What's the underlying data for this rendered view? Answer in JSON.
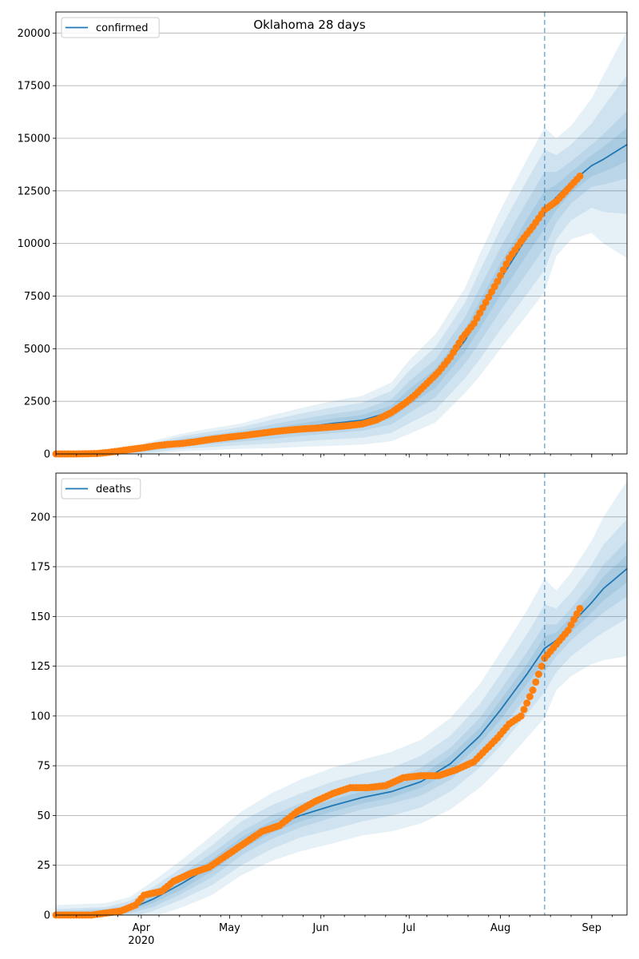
{
  "chart_data": [
    {
      "type": "line",
      "title": "Oklahoma 28 days",
      "legend": {
        "label": "confirmed",
        "placement": "top-left"
      },
      "x_unit": "date",
      "x_start": "2020-03-03",
      "x_end": "2020-09-13",
      "forecast_start": "2020-08-16",
      "ylim": [
        0,
        21000
      ],
      "yticks": [
        0,
        2500,
        5000,
        7500,
        10000,
        12500,
        15000,
        17500,
        20000
      ],
      "grid": "y",
      "colors": {
        "line": "#1f77b4",
        "points": "#ff7f0e",
        "band": "#1f77b4"
      },
      "model_anchors": {
        "x": [
          "2020-03-03",
          "2020-03-15",
          "2020-03-25",
          "2020-04-05",
          "2020-04-15",
          "2020-04-25",
          "2020-05-05",
          "2020-05-15",
          "2020-05-25",
          "2020-06-05",
          "2020-06-15",
          "2020-06-25",
          "2020-07-01",
          "2020-07-10",
          "2020-07-20",
          "2020-07-25",
          "2020-08-01",
          "2020-08-10",
          "2020-08-16",
          "2020-08-20",
          "2020-08-25",
          "2020-09-01",
          "2020-09-05",
          "2020-09-13"
        ],
        "y": [
          0,
          0,
          50,
          300,
          550,
          700,
          850,
          1050,
          1250,
          1450,
          1600,
          2000,
          2700,
          3600,
          5400,
          6600,
          8300,
          10300,
          11600,
          12200,
          12900,
          13700,
          14000,
          14700
        ]
      },
      "band_widths": [
        [
          0,
          0,
          30,
          70,
          90,
          110,
          130,
          170,
          200,
          230,
          250,
          300,
          380,
          450,
          550,
          650,
          750,
          850,
          900,
          600,
          500,
          500,
          600,
          800
        ],
        [
          0,
          0,
          60,
          140,
          180,
          220,
          260,
          340,
          400,
          460,
          500,
          600,
          750,
          900,
          1100,
          1300,
          1500,
          1700,
          1800,
          1200,
          1000,
          1000,
          1200,
          1600
        ],
        [
          0,
          0,
          100,
          230,
          300,
          370,
          430,
          560,
          660,
          760,
          830,
          1000,
          1250,
          1500,
          1800,
          2100,
          2400,
          2700,
          2850,
          2000,
          1800,
          2000,
          2500,
          3300
        ],
        [
          0,
          0,
          140,
          320,
          420,
          520,
          600,
          780,
          920,
          1060,
          1160,
          1400,
          1750,
          2100,
          2500,
          2900,
          3300,
          3700,
          3900,
          2800,
          2700,
          3200,
          4000,
          5400
        ]
      ],
      "observed": {
        "x": [
          "2020-03-03",
          "2020-03-10",
          "2020-03-17",
          "2020-03-20",
          "2020-03-24",
          "2020-03-28",
          "2020-04-02",
          "2020-04-06",
          "2020-04-10",
          "2020-04-15",
          "2020-04-20",
          "2020-04-25",
          "2020-05-01",
          "2020-05-06",
          "2020-05-11",
          "2020-05-16",
          "2020-05-21",
          "2020-05-26",
          "2020-05-31",
          "2020-06-05",
          "2020-06-10",
          "2020-06-15",
          "2020-06-20",
          "2020-06-25",
          "2020-06-30",
          "2020-07-03",
          "2020-07-07",
          "2020-07-11",
          "2020-07-15",
          "2020-07-19",
          "2020-07-23",
          "2020-07-27",
          "2020-07-31",
          "2020-08-04",
          "2020-08-08",
          "2020-08-12",
          "2020-08-16",
          "2020-08-20",
          "2020-08-24",
          "2020-08-28"
        ],
        "y": [
          0,
          0,
          20,
          60,
          130,
          210,
          300,
          390,
          450,
          500,
          590,
          700,
          800,
          880,
          970,
          1060,
          1130,
          1190,
          1230,
          1280,
          1340,
          1420,
          1620,
          1970,
          2450,
          2800,
          3350,
          3900,
          4600,
          5500,
          6200,
          7200,
          8200,
          9300,
          10100,
          10800,
          11600,
          12000,
          12600,
          13200
        ]
      }
    },
    {
      "type": "line",
      "title": "",
      "legend": {
        "label": "deaths",
        "placement": "top-left"
      },
      "x_unit": "date",
      "x_start": "2020-03-03",
      "x_end": "2020-09-13",
      "forecast_start": "2020-08-16",
      "xticks": [
        "Apr",
        "May",
        "Jun",
        "Jul",
        "Aug",
        "Sep"
      ],
      "xtick_dates": [
        "2020-04-01",
        "2020-05-01",
        "2020-06-01",
        "2020-07-01",
        "2020-08-01",
        "2020-09-01"
      ],
      "year_label": "2020",
      "ylim": [
        0,
        222
      ],
      "yticks": [
        0,
        25,
        50,
        75,
        100,
        125,
        150,
        175,
        200
      ],
      "grid": "y",
      "colors": {
        "line": "#1f77b4",
        "points": "#ff7f0e",
        "band": "#1f77b4"
      },
      "model_anchors": {
        "x": [
          "2020-03-03",
          "2020-03-20",
          "2020-03-28",
          "2020-04-05",
          "2020-04-15",
          "2020-04-25",
          "2020-05-05",
          "2020-05-15",
          "2020-05-25",
          "2020-06-05",
          "2020-06-15",
          "2020-06-25",
          "2020-07-05",
          "2020-07-15",
          "2020-07-25",
          "2020-08-01",
          "2020-08-10",
          "2020-08-16",
          "2020-08-20",
          "2020-08-25",
          "2020-09-01",
          "2020-09-05",
          "2020-09-13"
        ],
        "y": [
          0,
          1,
          3,
          8,
          16,
          25,
          36,
          44,
          50,
          55,
          59,
          62,
          67,
          76,
          90,
          103,
          121,
          134,
          138,
          146,
          157,
          164,
          174
        ]
      },
      "band_widths": [
        [
          1,
          1,
          1,
          2,
          3,
          3,
          3,
          3,
          3,
          3,
          3,
          3,
          3,
          4,
          4,
          5,
          5,
          6,
          4,
          4,
          5,
          6,
          7
        ],
        [
          2,
          2,
          2,
          4,
          5,
          6,
          6,
          6,
          6,
          6,
          6,
          6,
          7,
          8,
          9,
          10,
          11,
          12,
          8,
          8,
          10,
          12,
          14
        ],
        [
          3,
          3,
          4,
          6,
          8,
          10,
          11,
          11,
          11,
          12,
          12,
          12,
          13,
          14,
          16,
          18,
          20,
          22,
          16,
          16,
          19,
          22,
          25
        ],
        [
          5,
          5,
          6,
          9,
          12,
          15,
          16,
          17,
          18,
          19,
          19,
          20,
          21,
          23,
          26,
          29,
          32,
          35,
          25,
          26,
          31,
          36,
          44
        ]
      ],
      "observed": {
        "x": [
          "2020-03-03",
          "2020-03-15",
          "2020-03-20",
          "2020-03-25",
          "2020-03-30",
          "2020-04-02",
          "2020-04-08",
          "2020-04-12",
          "2020-04-18",
          "2020-04-24",
          "2020-04-30",
          "2020-05-06",
          "2020-05-12",
          "2020-05-18",
          "2020-05-24",
          "2020-05-30",
          "2020-06-05",
          "2020-06-11",
          "2020-06-17",
          "2020-06-23",
          "2020-06-29",
          "2020-07-05",
          "2020-07-11",
          "2020-07-17",
          "2020-07-23",
          "2020-07-27",
          "2020-07-31",
          "2020-08-04",
          "2020-08-08",
          "2020-08-12",
          "2020-08-16",
          "2020-08-20",
          "2020-08-24",
          "2020-08-28"
        ],
        "y": [
          0,
          0,
          1,
          2,
          5,
          10,
          12,
          17,
          21,
          24,
          30,
          36,
          42,
          45,
          52,
          57,
          61,
          64,
          64,
          65,
          69,
          70,
          70,
          73,
          77,
          83,
          89,
          96,
          100,
          113,
          129,
          136,
          143,
          154
        ]
      }
    }
  ]
}
